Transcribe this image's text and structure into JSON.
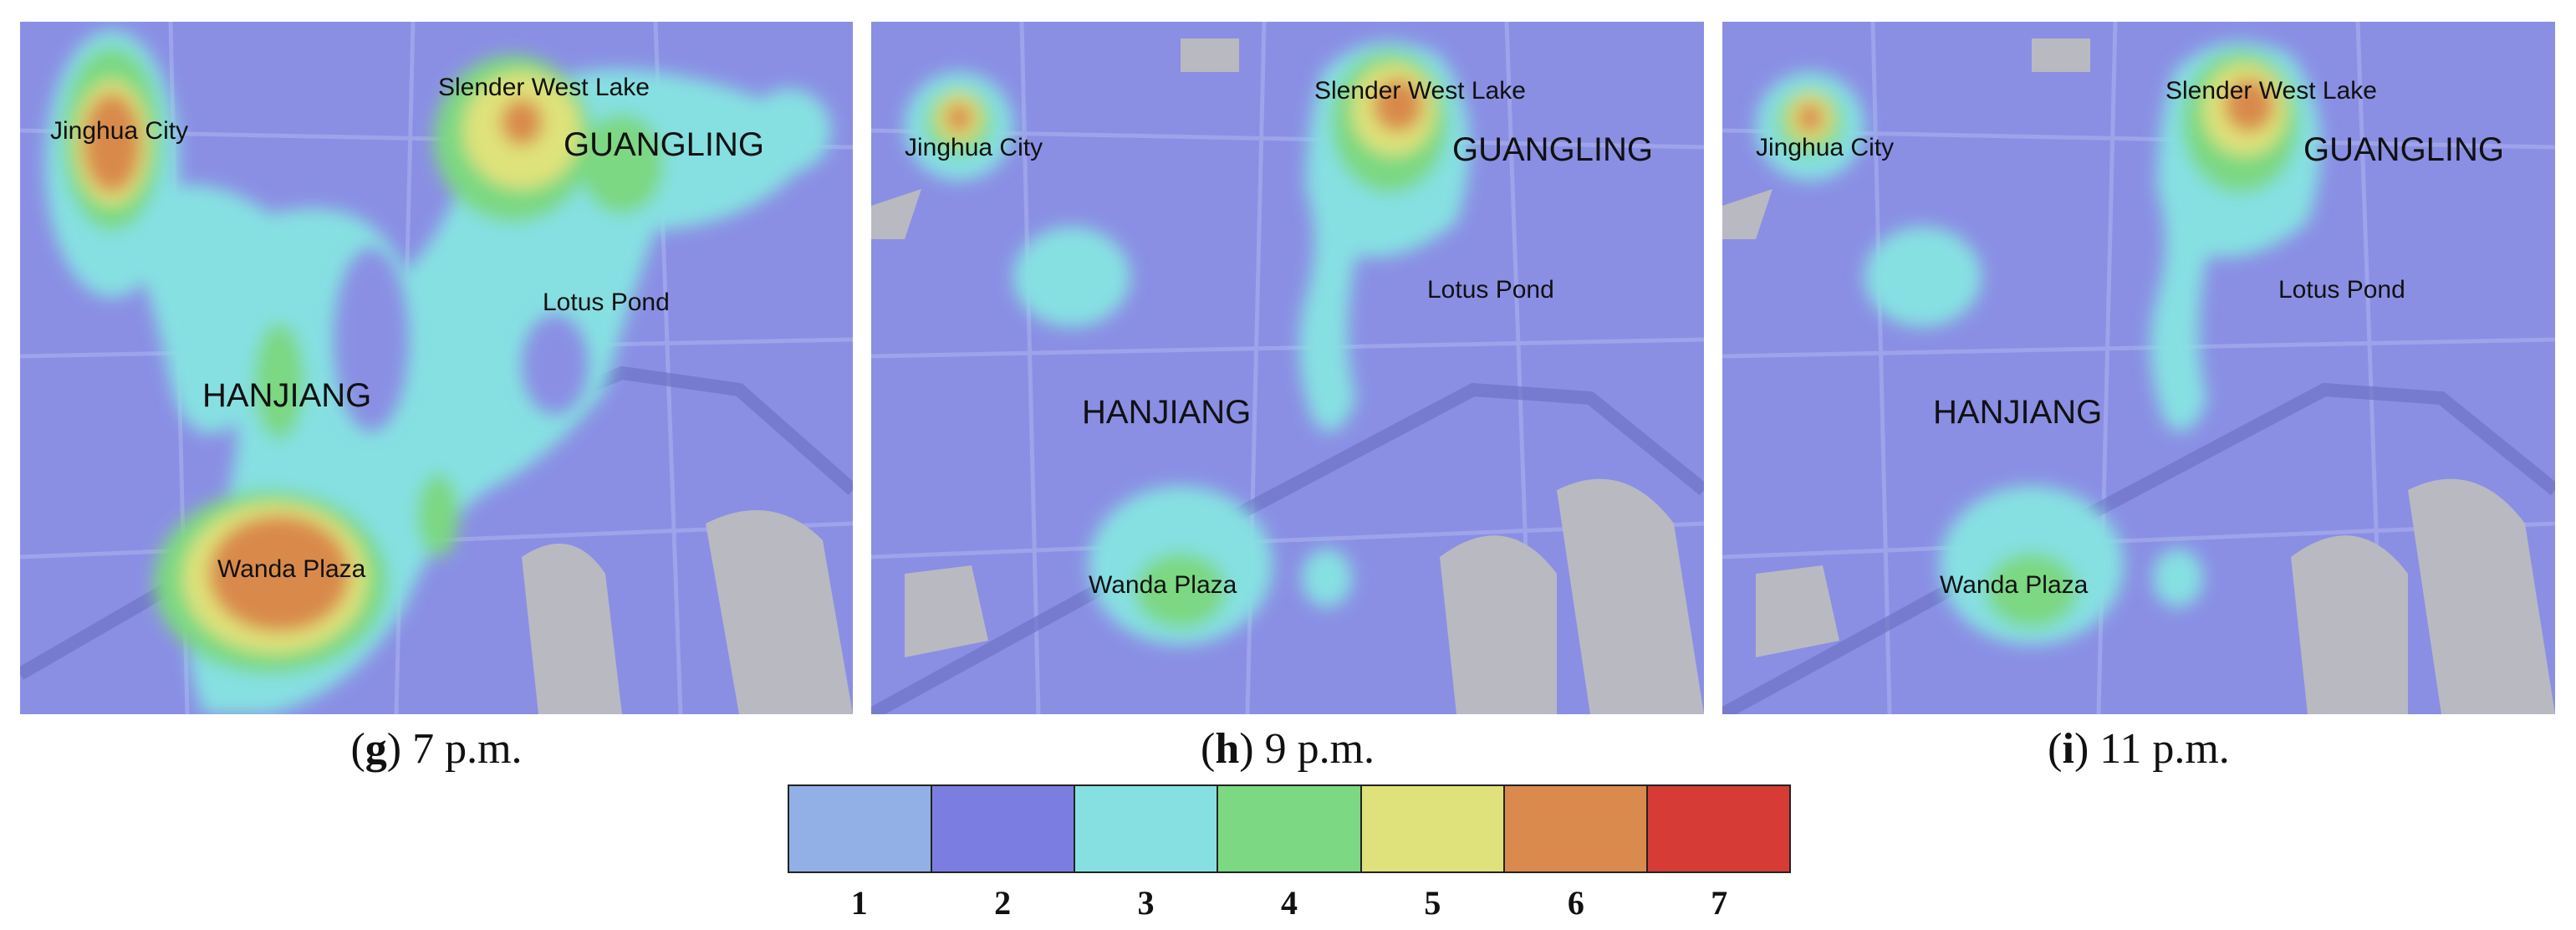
{
  "panels": [
    {
      "letter": "g",
      "time": "7 p.m.",
      "labels": {
        "jinghua": "Jinghua City",
        "slender": "Slender West Lake",
        "guangling": "GUANGLING",
        "lotus": "Lotus Pond",
        "hanjiang": "HANJIANG",
        "wanda": "Wanda Plaza"
      }
    },
    {
      "letter": "h",
      "time": "9 p.m.",
      "labels": {
        "jinghua": "Jinghua City",
        "slender": "Slender West Lake",
        "guangling": "GUANGLING",
        "lotus": "Lotus Pond",
        "hanjiang": "HANJIANG",
        "wanda": "Wanda Plaza"
      }
    },
    {
      "letter": "i",
      "time": "11 p.m.",
      "labels": {
        "jinghua": "Jinghua City",
        "slender": "Slender West Lake",
        "guangling": "GUANGLING",
        "lotus": "Lotus Pond",
        "hanjiang": "HANJIANG",
        "wanda": "Wanda Plaza"
      }
    }
  ],
  "legend": {
    "levels": [
      "1",
      "2",
      "3",
      "4",
      "5",
      "6",
      "7"
    ],
    "colors": [
      "#92b0e6",
      "#7b7ee0",
      "#86e0e2",
      "#7cd882",
      "#dfe27a",
      "#d98a4c",
      "#d63b36"
    ]
  }
}
